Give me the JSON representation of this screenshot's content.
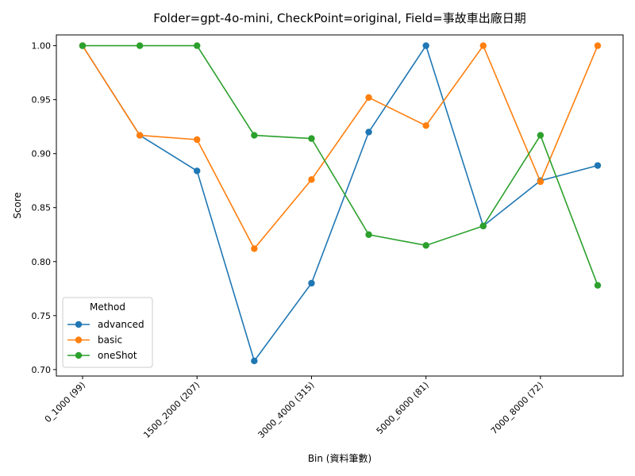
{
  "chart_data": {
    "type": "line",
    "title": "Folder=gpt-4o-mini, CheckPoint=original, Field=事故車出廠日期",
    "xlabel": "Bin (資料筆數)",
    "ylabel": "Score",
    "x_tick_labels": [
      "0_1000 (99)",
      "1500_2000 (207)",
      "3000_4000 (315)",
      "5000_6000 (81)",
      "7000_8000 (72)"
    ],
    "x_tick_indices": [
      0,
      2,
      4,
      6,
      8
    ],
    "y_ticks": [
      "0.70",
      "0.75",
      "0.80",
      "0.85",
      "0.90",
      "0.95",
      "1.00"
    ],
    "ylim": [
      0.694,
      1.01
    ],
    "legend": {
      "title": "Method",
      "position": "lower-left"
    },
    "series": [
      {
        "name": "advanced",
        "color": "#1f77b4",
        "values": [
          1.0,
          0.917,
          0.884,
          0.708,
          0.78,
          0.92,
          1.0,
          0.833,
          0.875,
          0.889
        ]
      },
      {
        "name": "basic",
        "color": "#ff7f0e",
        "values": [
          1.0,
          0.917,
          0.913,
          0.812,
          0.876,
          0.952,
          0.926,
          1.0,
          0.874,
          1.0
        ]
      },
      {
        "name": "oneShot",
        "color": "#2ca02c",
        "values": [
          1.0,
          1.0,
          1.0,
          0.917,
          0.914,
          0.825,
          0.815,
          0.833,
          0.917,
          0.778
        ]
      }
    ]
  }
}
